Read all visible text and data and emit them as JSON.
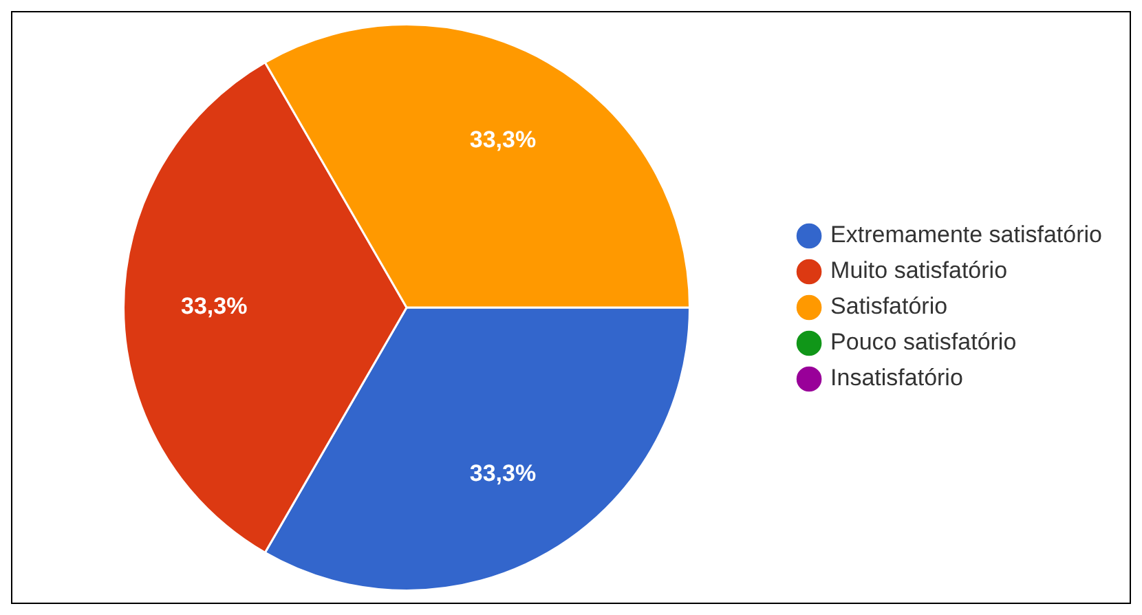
{
  "chart_data": {
    "type": "pie",
    "categories": [
      "Extremamente satisfatório",
      "Muito satisfatório",
      "Satisfatório",
      "Pouco satisfatório",
      "Insatisfatório"
    ],
    "values": [
      33.3,
      33.3,
      33.3,
      0,
      0
    ],
    "value_labels": [
      "33,3%",
      "33,3%",
      "33,3%",
      null,
      null
    ],
    "colors": [
      "#3366cc",
      "#dc3912",
      "#ff9900",
      "#109618",
      "#990099"
    ],
    "legend": "right"
  }
}
